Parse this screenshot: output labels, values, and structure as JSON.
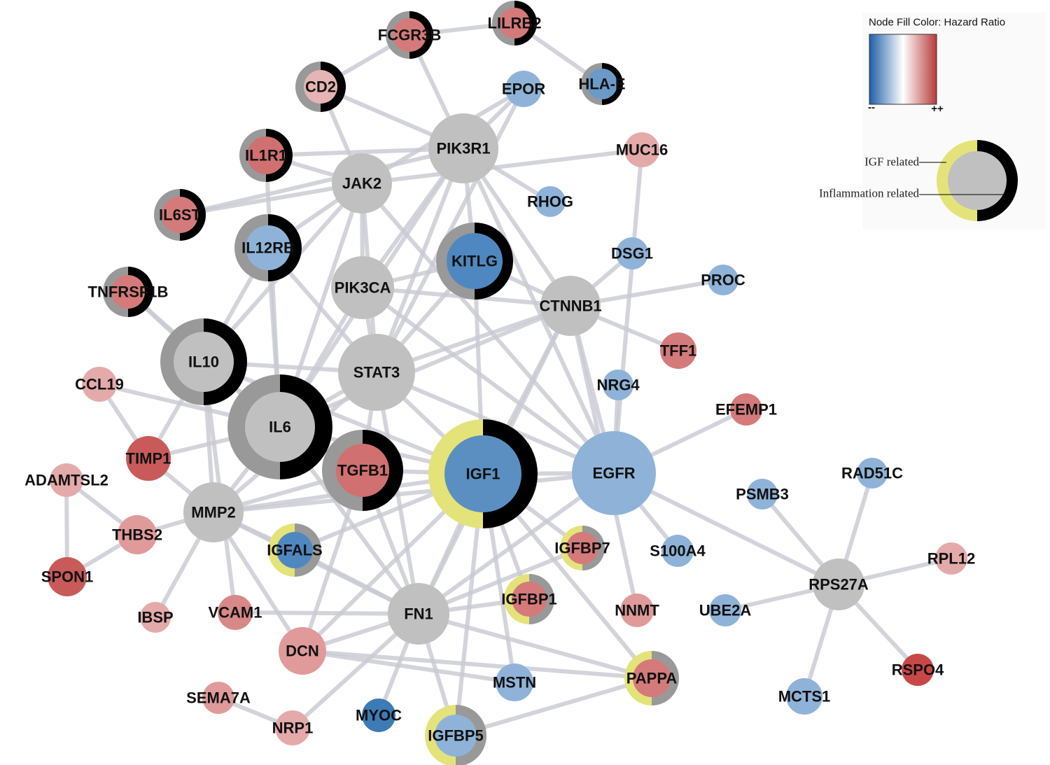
{
  "nodes": [
    {
      "label": "FCGR3B"
    },
    {
      "label": "LILRB2"
    },
    {
      "label": "CD2"
    },
    {
      "label": "EPOR"
    },
    {
      "label": "HLA-E"
    },
    {
      "label": "PIK3R1"
    },
    {
      "label": "MUC16"
    },
    {
      "label": "IL1R1"
    },
    {
      "label": "JAK2"
    },
    {
      "label": "RHOG"
    },
    {
      "label": "IL6ST"
    },
    {
      "label": "IL12RB"
    },
    {
      "label": "KITLG"
    },
    {
      "label": "DSG1"
    },
    {
      "label": "PROC"
    },
    {
      "label": "PIK3CA"
    },
    {
      "label": "CTNNB1"
    },
    {
      "label": "TNFRSF1B"
    },
    {
      "label": "TFF1"
    },
    {
      "label": "IL10"
    },
    {
      "label": "STAT3"
    },
    {
      "label": "CCL19"
    },
    {
      "label": "NRG4"
    },
    {
      "label": "IL6"
    },
    {
      "label": "EFEMP1"
    },
    {
      "label": "TIMP1"
    },
    {
      "label": "TGFB1"
    },
    {
      "label": "IGF1"
    },
    {
      "label": "EGFR"
    },
    {
      "label": "ADAMTSL2"
    },
    {
      "label": "RAD51C"
    },
    {
      "label": "PSMB3"
    },
    {
      "label": "MMP2"
    },
    {
      "label": "THBS2"
    },
    {
      "label": "IGFALS"
    },
    {
      "label": "IGFBP7"
    },
    {
      "label": "S100A4"
    },
    {
      "label": "RPL12"
    },
    {
      "label": "SPON1"
    },
    {
      "label": "RPS27A"
    },
    {
      "label": "IGFBP1"
    },
    {
      "label": "VCAM1"
    },
    {
      "label": "FN1"
    },
    {
      "label": "NNMT"
    },
    {
      "label": "UBE2A"
    },
    {
      "label": "IBSP"
    },
    {
      "label": "DCN"
    },
    {
      "label": "MSTN"
    },
    {
      "label": "PAPPA"
    },
    {
      "label": "RSPO4"
    },
    {
      "label": "MCTS1"
    },
    {
      "label": "SEMA7A"
    },
    {
      "label": "MYOC"
    },
    {
      "label": "NRP1"
    },
    {
      "label": "IGFBP5"
    }
  ],
  "legend": {
    "title": "Node Fill Color:  Hazard Ratio",
    "low": "--",
    "high": "++",
    "igf": "IGF related",
    "inflammation": "Inflammation related"
  }
}
